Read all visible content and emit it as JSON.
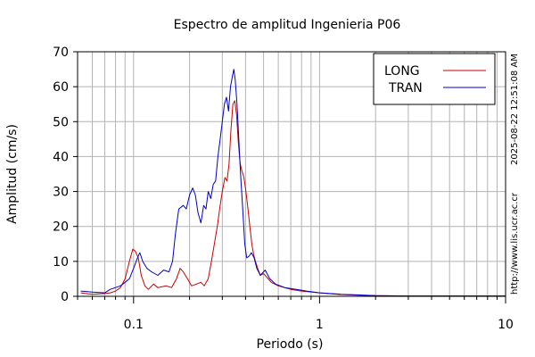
{
  "chart_data": {
    "type": "line",
    "title": "Espectro de amplitud Ingenieria P06",
    "xlabel": "Periodo (s)",
    "ylabel": "Amplitud (cm/s)",
    "x_scale": "log",
    "xlim": [
      0.05,
      10
    ],
    "ylim": [
      0,
      70
    ],
    "x_ticks": [
      0.1,
      1,
      10
    ],
    "x_tick_labels": [
      "0.1",
      "1",
      "10"
    ],
    "y_ticks": [
      0,
      10,
      20,
      30,
      40,
      50,
      60,
      70
    ],
    "y_tick_labels": [
      "0",
      "10",
      "20",
      "30",
      "40",
      "50",
      "60",
      "70"
    ],
    "grid": true,
    "legend_position": "top-right",
    "series": [
      {
        "name": "LONG",
        "color": "#cc0000",
        "points": [
          [
            0.052,
            1.0
          ],
          [
            0.06,
            0.6
          ],
          [
            0.07,
            0.8
          ],
          [
            0.075,
            1.0
          ],
          [
            0.08,
            1.5
          ],
          [
            0.085,
            2.5
          ],
          [
            0.09,
            5.0
          ],
          [
            0.095,
            10.0
          ],
          [
            0.099,
            13.5
          ],
          [
            0.102,
            13.0
          ],
          [
            0.106,
            11.0
          ],
          [
            0.11,
            6.0
          ],
          [
            0.115,
            3.0
          ],
          [
            0.12,
            2.0
          ],
          [
            0.128,
            3.5
          ],
          [
            0.135,
            2.5
          ],
          [
            0.15,
            3.0
          ],
          [
            0.16,
            2.5
          ],
          [
            0.17,
            5.0
          ],
          [
            0.178,
            8.0
          ],
          [
            0.185,
            7.0
          ],
          [
            0.195,
            5.0
          ],
          [
            0.205,
            3.0
          ],
          [
            0.218,
            3.5
          ],
          [
            0.23,
            4.0
          ],
          [
            0.24,
            3.0
          ],
          [
            0.252,
            5.0
          ],
          [
            0.262,
            10.0
          ],
          [
            0.272,
            15.0
          ],
          [
            0.282,
            20.0
          ],
          [
            0.292,
            26.0
          ],
          [
            0.3,
            30.0
          ],
          [
            0.31,
            34.0
          ],
          [
            0.318,
            33.0
          ],
          [
            0.326,
            38.0
          ],
          [
            0.334,
            48.0
          ],
          [
            0.342,
            55.0
          ],
          [
            0.35,
            56.0
          ],
          [
            0.358,
            52.0
          ],
          [
            0.366,
            44.0
          ],
          [
            0.374,
            38.0
          ],
          [
            0.382,
            36.0
          ],
          [
            0.392,
            34.0
          ],
          [
            0.402,
            30.0
          ],
          [
            0.412,
            25.0
          ],
          [
            0.422,
            20.0
          ],
          [
            0.432,
            15.0
          ],
          [
            0.442,
            12.0
          ],
          [
            0.452,
            10.0
          ],
          [
            0.465,
            8.0
          ],
          [
            0.48,
            6.0
          ],
          [
            0.5,
            6.5
          ],
          [
            0.52,
            5.5
          ],
          [
            0.55,
            4.0
          ],
          [
            0.6,
            3.0
          ],
          [
            0.7,
            2.0
          ],
          [
            0.8,
            1.5
          ],
          [
            1.0,
            1.0
          ],
          [
            1.3,
            0.5
          ],
          [
            1.6,
            0.3
          ],
          [
            2.0,
            0.2
          ],
          [
            3.0,
            0.1
          ],
          [
            10.0,
            0.1
          ]
        ]
      },
      {
        "name": "TRAN",
        "color": "#0000cc",
        "points": [
          [
            0.052,
            1.5
          ],
          [
            0.06,
            1.2
          ],
          [
            0.07,
            1.0
          ],
          [
            0.075,
            2.0
          ],
          [
            0.08,
            2.5
          ],
          [
            0.085,
            3.0
          ],
          [
            0.09,
            4.0
          ],
          [
            0.095,
            5.0
          ],
          [
            0.1,
            8.0
          ],
          [
            0.105,
            11.0
          ],
          [
            0.108,
            12.5
          ],
          [
            0.112,
            10.0
          ],
          [
            0.118,
            8.0
          ],
          [
            0.125,
            7.0
          ],
          [
            0.135,
            6.0
          ],
          [
            0.145,
            7.5
          ],
          [
            0.155,
            7.0
          ],
          [
            0.162,
            10.0
          ],
          [
            0.168,
            18.0
          ],
          [
            0.175,
            25.0
          ],
          [
            0.185,
            26.0
          ],
          [
            0.192,
            25.0
          ],
          [
            0.2,
            29.0
          ],
          [
            0.208,
            31.0
          ],
          [
            0.215,
            29.0
          ],
          [
            0.222,
            24.0
          ],
          [
            0.23,
            21.0
          ],
          [
            0.238,
            26.0
          ],
          [
            0.245,
            25.0
          ],
          [
            0.252,
            30.0
          ],
          [
            0.26,
            28.0
          ],
          [
            0.268,
            32.0
          ],
          [
            0.276,
            33.0
          ],
          [
            0.284,
            40.0
          ],
          [
            0.292,
            45.0
          ],
          [
            0.3,
            50.0
          ],
          [
            0.308,
            55.0
          ],
          [
            0.316,
            57.0
          ],
          [
            0.324,
            53.0
          ],
          [
            0.332,
            60.0
          ],
          [
            0.34,
            63.0
          ],
          [
            0.346,
            65.0
          ],
          [
            0.352,
            62.0
          ],
          [
            0.36,
            55.0
          ],
          [
            0.368,
            45.0
          ],
          [
            0.376,
            35.0
          ],
          [
            0.386,
            25.0
          ],
          [
            0.396,
            15.0
          ],
          [
            0.406,
            11.0
          ],
          [
            0.418,
            11.5
          ],
          [
            0.43,
            12.5
          ],
          [
            0.445,
            11.0
          ],
          [
            0.46,
            8.0
          ],
          [
            0.48,
            6.0
          ],
          [
            0.51,
            7.5
          ],
          [
            0.54,
            5.0
          ],
          [
            0.58,
            3.5
          ],
          [
            0.65,
            2.5
          ],
          [
            0.75,
            2.0
          ],
          [
            0.85,
            1.5
          ],
          [
            1.0,
            1.0
          ],
          [
            1.3,
            0.6
          ],
          [
            1.6,
            0.4
          ],
          [
            2.0,
            0.2
          ],
          [
            3.0,
            0.1
          ],
          [
            10.0,
            0.1
          ]
        ]
      }
    ]
  },
  "side_texts": {
    "timestamp": "2025-08-22 12:51:08 AM",
    "url": "http://www.lis.ucr.ac.cr"
  }
}
